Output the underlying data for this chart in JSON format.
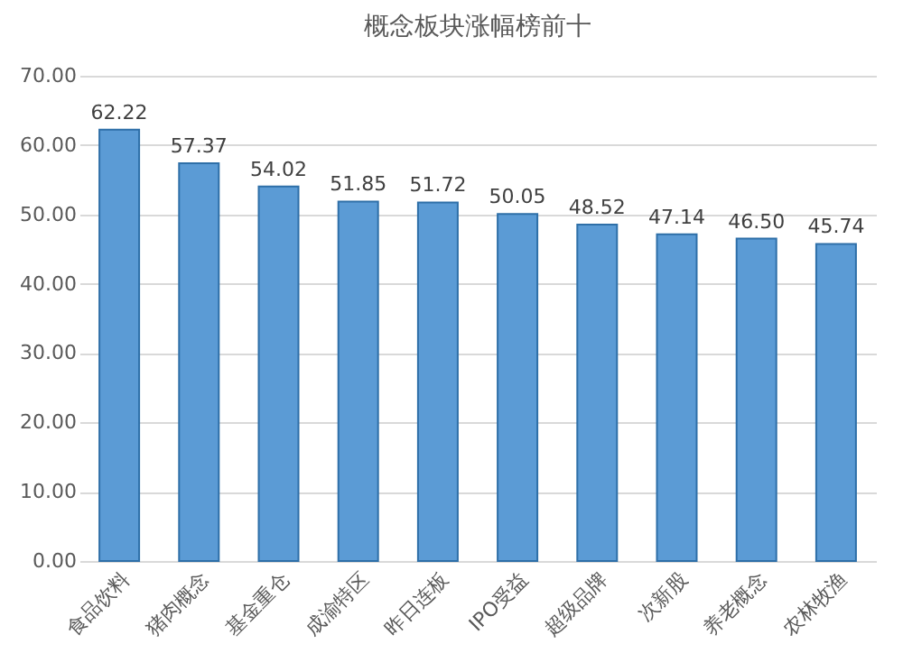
{
  "chart_data": {
    "type": "bar",
    "title": "概念板块涨幅榜前十",
    "categories": [
      "食品饮料",
      "猪肉概念",
      "基金重仓",
      "成渝特区",
      "昨日连板",
      "IPO受益",
      "超级品牌",
      "次新股",
      "养老概念",
      "农林牧渔"
    ],
    "values": [
      62.22,
      57.37,
      54.02,
      51.85,
      51.72,
      50.05,
      48.52,
      47.14,
      46.5,
      45.74
    ],
    "value_labels": [
      "62.22",
      "57.37",
      "54.02",
      "51.85",
      "51.72",
      "50.05",
      "48.52",
      "47.14",
      "46.50",
      "45.74"
    ],
    "color": "#5b9bd5",
    "ylim": [
      0,
      70
    ],
    "yticks": [
      {
        "value": 0,
        "label": "0.00"
      },
      {
        "value": 10,
        "label": "10.00"
      },
      {
        "value": 20,
        "label": "20.00"
      },
      {
        "value": 30,
        "label": "30.00"
      },
      {
        "value": 40,
        "label": "40.00"
      },
      {
        "value": 50,
        "label": "50.00"
      },
      {
        "value": 60,
        "label": "60.00"
      },
      {
        "value": 70,
        "label": "70.00"
      }
    ],
    "grid": "y"
  }
}
